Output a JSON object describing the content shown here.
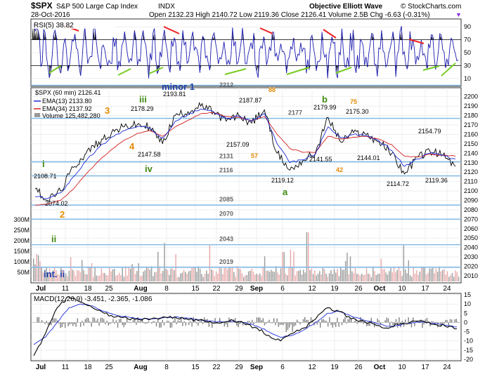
{
  "header": {
    "symbol": "$SPX",
    "name": "S&P 500 Large Cap Index",
    "exchange": "INDX",
    "date": "28-Oct-2016",
    "ohlc": "Open 2132.23  High 2140.72  Low 2119.36  Close 2126.41  Volume 2.5B  Chg -6.63 (-0.31%)",
    "marker": "▼",
    "chart_title": "Objective Elliott Wave",
    "credit": "© StockCharts.com"
  },
  "rsi": {
    "label": "RSI(5) 38.82",
    "ticks": [
      "90",
      "70",
      "50",
      "30",
      "10"
    ]
  },
  "price_panel": {
    "legend": {
      "symbol_line": "$SPX (60 min) 2126.41",
      "ema13": "EMA(13) 2133.80",
      "ema34": "EMA(34) 2137.92",
      "volume": "Volume 125,482,280"
    },
    "y_ticks": [
      "2200",
      "2190",
      "2180",
      "2170",
      "2160",
      "2150",
      "2140",
      "2130",
      "2120",
      "2110",
      "2100",
      "2090",
      "2080",
      "2070",
      "2060",
      "2050",
      "2040",
      "2030",
      "2020",
      "2010"
    ],
    "vol_ticks": [
      "300M",
      "250M",
      "200M",
      "150M",
      "100M",
      "50M"
    ],
    "level_labels": [
      "2212",
      "2177",
      "2131",
      "2116",
      "2085",
      "2070",
      "2043",
      "2019"
    ],
    "price_labels": [
      "2193.81",
      "2178.29",
      "2187.87",
      "2179.99",
      "2175.30",
      "2154.79",
      "2157.09",
      "2147.58",
      "2141.55",
      "2144.01",
      "2119.12",
      "2114.72",
      "2119.36",
      "2108.71",
      "2074.02"
    ],
    "wave_labels": {
      "minor1": "minor 1",
      "w3_green": "iii",
      "w3_orange": "3",
      "w4_orange": "4",
      "w4_green": "iv",
      "w1_green": "i",
      "w2_orange": "2",
      "w2_green": "ii",
      "int2": "int. ii",
      "a": "a",
      "b": "b",
      "n88": "88",
      "n57": "57",
      "n75": "75",
      "n42": "42"
    }
  },
  "macd": {
    "label": "MACD(12,26,9) -3.451, -2.365, -1.086",
    "ticks": [
      "15",
      "10",
      "5",
      "0",
      "-5",
      "-10",
      "-15",
      "-20"
    ]
  },
  "x_axis": [
    "Jul",
    "11",
    "18",
    "25",
    "Aug",
    "8",
    "15",
    "22",
    "29",
    "Sep",
    "6",
    "12",
    "19",
    "26",
    "Oct",
    "10",
    "17",
    "24"
  ],
  "colors": {
    "price": "#000000",
    "ema13": "#1c2bd6",
    "ema34": "#d42020",
    "rsi_line": "#1c1cb0",
    "rsi_fill": "#000000",
    "level_line": "#88bde6",
    "volume_up": "#e8a8a8",
    "volume_down": "#9a9a9a",
    "wave_green": "#3d8a10",
    "wave_orange": "#e38a00",
    "wave_blue": "#1a3faa",
    "divergence_red": "#ee2222",
    "support_green": "#77cc22",
    "macd_hist": "#808080"
  },
  "chart_data": {
    "type": "line",
    "title": "Objective Elliott Wave",
    "subtitle": "$SPX S&P 500 Large Cap Index INDX (60 min) — 28-Oct-2016",
    "x": [
      "Jul 1",
      "Jul 5",
      "Jul 7",
      "Jul 8",
      "Jul 11",
      "Jul 13",
      "Jul 15",
      "Jul 20",
      "Jul 25",
      "Jul 28",
      "Aug 2",
      "Aug 5",
      "Aug 10",
      "Aug 15",
      "Aug 19",
      "Aug 24",
      "Aug 29",
      "Sep 1",
      "Sep 7",
      "Sep 9",
      "Sep 12",
      "Sep 15",
      "Sep 20",
      "Sep 22",
      "Sep 26",
      "Sep 29",
      "Oct 3",
      "Oct 7",
      "Oct 11",
      "Oct 13",
      "Oct 18",
      "Oct 21",
      "Oct 25",
      "Oct 28"
    ],
    "series": [
      {
        "name": "$SPX (60 min)",
        "values": [
          2102,
          2090,
          2100,
          2125,
          2140,
          2152,
          2162,
          2168,
          2170,
          2168,
          2150,
          2180,
          2184,
          2190,
          2184,
          2174,
          2180,
          2172,
          2186,
          2140,
          2122,
          2132,
          2140,
          2178,
          2152,
          2162,
          2160,
          2152,
          2140,
          2118,
          2136,
          2142,
          2138,
          2126
        ]
      },
      {
        "name": "EMA(13)",
        "values": [
          2094,
          2092,
          2098,
          2115,
          2132,
          2146,
          2157,
          2164,
          2168,
          2167,
          2156,
          2174,
          2181,
          2187,
          2184,
          2177,
          2179,
          2174,
          2182,
          2150,
          2130,
          2133,
          2139,
          2168,
          2156,
          2160,
          2159,
          2153,
          2143,
          2126,
          2134,
          2140,
          2138,
          2134
        ]
      },
      {
        "name": "EMA(34)",
        "values": [
          2085,
          2086,
          2090,
          2102,
          2118,
          2132,
          2144,
          2154,
          2161,
          2164,
          2158,
          2168,
          2175,
          2182,
          2183,
          2179,
          2178,
          2175,
          2179,
          2160,
          2145,
          2141,
          2141,
          2158,
          2155,
          2157,
          2158,
          2155,
          2149,
          2137,
          2136,
          2139,
          2138,
          2137
        ]
      }
    ],
    "ylim": [
      2004,
      2208
    ],
    "levels": [
      2212,
      2177,
      2131,
      2116,
      2085,
      2070,
      2043,
      2019
    ],
    "rsi": {
      "label": "RSI(5)",
      "last": 38.82,
      "ylim": [
        0,
        100
      ]
    },
    "macd": {
      "label": "MACD(12,26,9)",
      "macd": -3.451,
      "signal": -2.365,
      "hist": -1.086,
      "ylim": [
        -20,
        15
      ]
    },
    "volume": {
      "label": "Volume",
      "last": 125482280
    },
    "grid": true,
    "legend": "top-left"
  }
}
